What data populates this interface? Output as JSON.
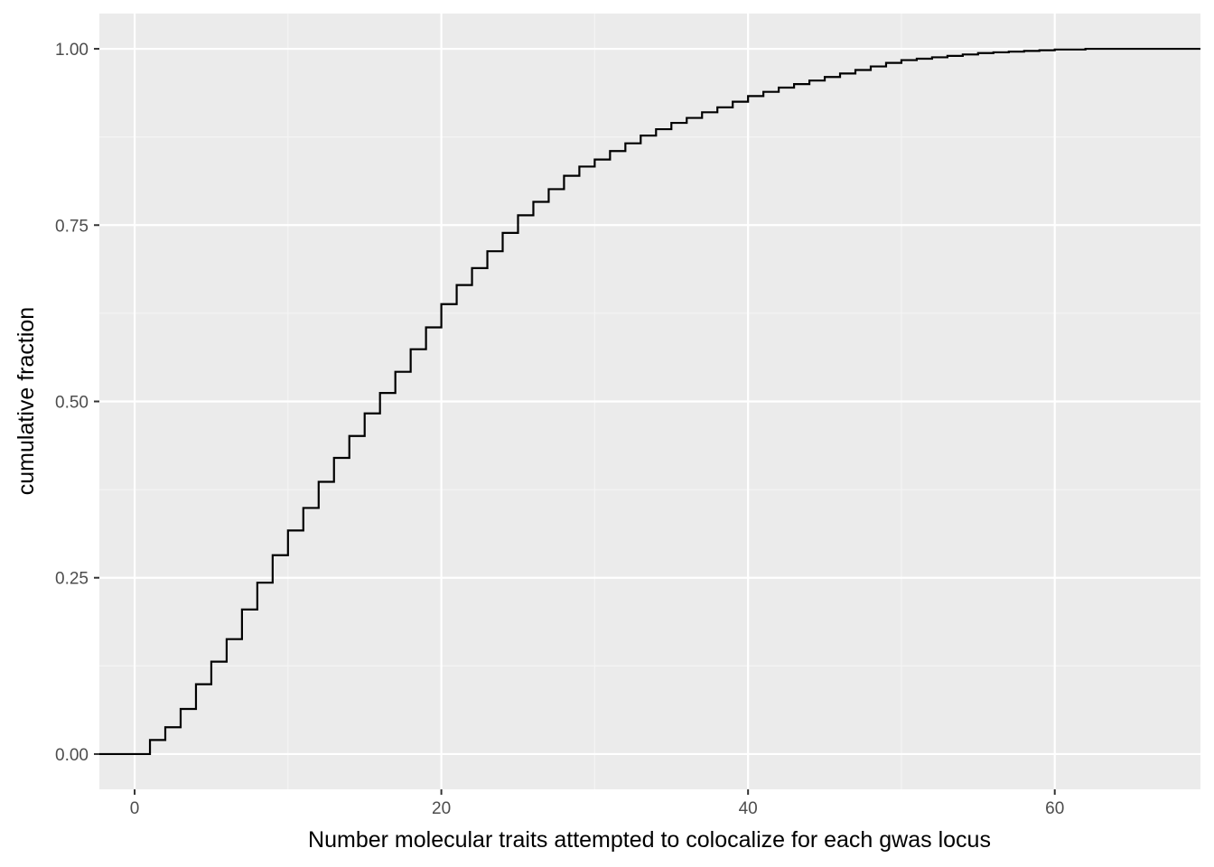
{
  "chart_data": {
    "type": "line",
    "subtype": "ecdf-step",
    "title": "",
    "xlabel": "Number molecular traits attempted to colocalize for each gwas locus",
    "ylabel": "cumulative fraction",
    "xlim": [
      -2.3,
      69.5
    ],
    "ylim": [
      -0.05,
      1.05
    ],
    "x_ticks": [
      0,
      20,
      40,
      60
    ],
    "x_tick_labels": [
      "0",
      "20",
      "40",
      "60"
    ],
    "y_ticks": [
      0,
      0.25,
      0.5,
      0.75,
      1.0
    ],
    "y_tick_labels": [
      "0.00",
      "0.25",
      "0.50",
      "0.75",
      "1.00"
    ],
    "grid": true,
    "legend": "none",
    "colors": {
      "panel_background": "#ebebeb",
      "grid_major": "#ffffff",
      "grid_minor": "#f5f5f5",
      "line": "#000000",
      "tick_text": "#4d4d4d",
      "axis_title": "#000000"
    },
    "series": [
      {
        "x": [
          -2.3,
          1,
          2,
          3,
          4,
          5,
          6,
          7,
          8,
          9,
          10,
          11,
          12,
          13,
          14,
          15,
          16,
          17,
          18,
          19,
          20,
          21,
          22,
          23,
          24,
          25,
          26,
          27,
          28,
          29,
          30,
          31,
          32,
          33,
          34,
          35,
          36,
          37,
          38,
          39,
          40,
          41,
          42,
          43,
          44,
          45,
          46,
          47,
          48,
          49,
          50,
          51,
          52,
          53,
          54,
          55,
          56,
          57,
          58,
          59,
          60,
          61,
          62,
          63,
          64,
          65,
          66,
          67,
          68,
          69.5
        ],
        "y": [
          0.0,
          0.02,
          0.038,
          0.064,
          0.099,
          0.131,
          0.163,
          0.205,
          0.243,
          0.282,
          0.317,
          0.349,
          0.386,
          0.42,
          0.451,
          0.483,
          0.512,
          0.542,
          0.574,
          0.605,
          0.638,
          0.665,
          0.689,
          0.713,
          0.739,
          0.764,
          0.783,
          0.801,
          0.82,
          0.833,
          0.843,
          0.855,
          0.866,
          0.877,
          0.886,
          0.895,
          0.902,
          0.91,
          0.917,
          0.925,
          0.933,
          0.939,
          0.945,
          0.95,
          0.955,
          0.96,
          0.965,
          0.97,
          0.975,
          0.98,
          0.984,
          0.986,
          0.988,
          0.99,
          0.992,
          0.994,
          0.995,
          0.996,
          0.997,
          0.998,
          0.999,
          0.999,
          1.0,
          1.0,
          1.0,
          1.0,
          1.0,
          1.0,
          1.0,
          1.0
        ]
      }
    ]
  }
}
